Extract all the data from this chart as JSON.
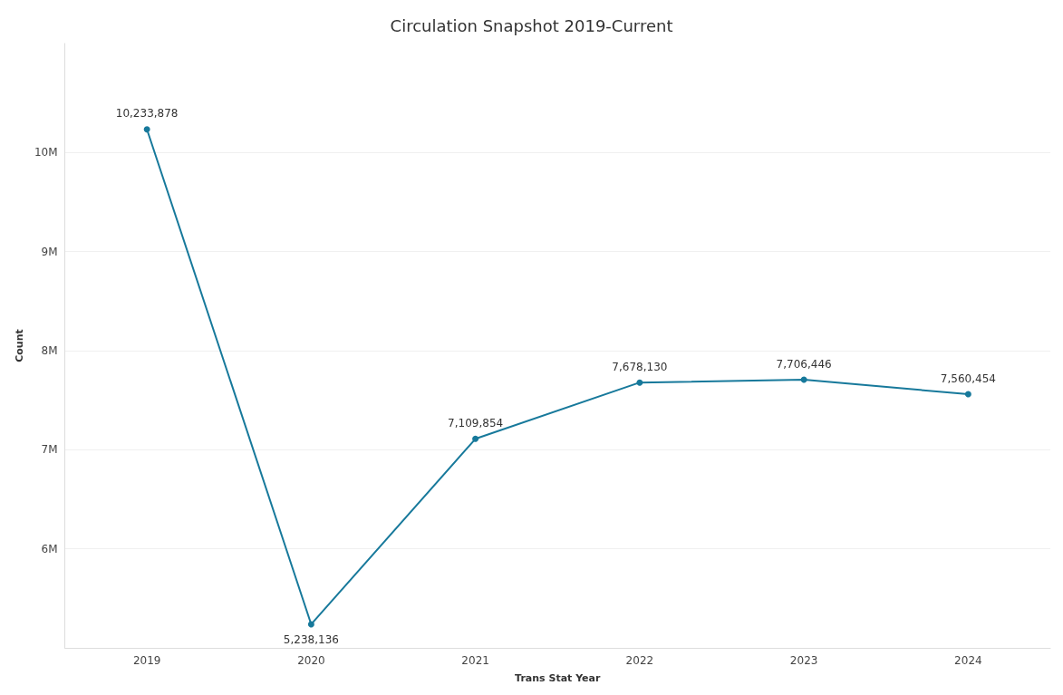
{
  "chart_data": {
    "type": "line",
    "title": "Circulation Snapshot 2019-Current",
    "xlabel": "Trans Stat Year",
    "ylabel": "Count",
    "categories": [
      "2019",
      "2020",
      "2021",
      "2022",
      "2023",
      "2024"
    ],
    "series": [
      {
        "color": "#17799b",
        "values": [
          10233878,
          5238136,
          7109854,
          7678130,
          7706446,
          7560454
        ],
        "value_labels": [
          "10,233,878",
          "5,238,136",
          "7,109,854",
          "7,678,130",
          "7,706,446",
          "7,560,454"
        ]
      }
    ],
    "ylim": [
      5000000,
      11100000
    ],
    "yticks": [
      {
        "value": 6000000,
        "label": "6M"
      },
      {
        "value": 7000000,
        "label": "7M"
      },
      {
        "value": 8000000,
        "label": "8M"
      },
      {
        "value": 9000000,
        "label": "9M"
      },
      {
        "value": 10000000,
        "label": "10M"
      }
    ],
    "grid": "y",
    "marker": "circle",
    "line_style": "solid"
  }
}
